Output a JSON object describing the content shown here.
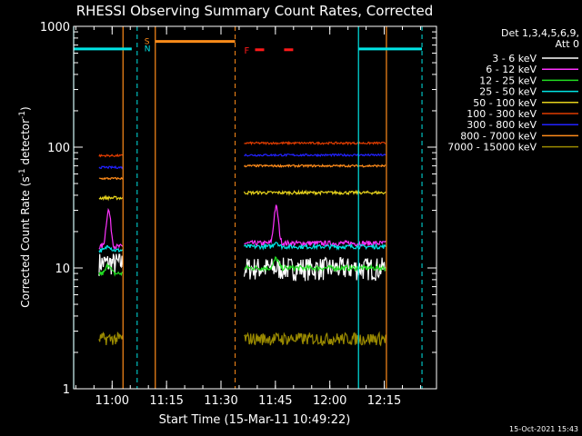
{
  "chart_data": {
    "type": "line",
    "title": "RHESSI Observing Summary Count Rates, Corrected",
    "xlabel": "Start Time (15-Mar-11 10:49:22)",
    "ylabel": "Corrected Count Rate (s⁻¹ detector⁻¹)",
    "ylabel_parts": {
      "main": "Corrected Count Rate (s",
      "exp1": "-1",
      "mid": " detector",
      "exp2": "-1",
      "end": ")"
    },
    "yscale": "log",
    "ylim": [
      1,
      1000
    ],
    "xlim_minutes": [
      0,
      100
    ],
    "x_ticks": [
      {
        "label": "11:00",
        "minute": 10.6
      },
      {
        "label": "11:15",
        "minute": 25.6
      },
      {
        "label": "11:30",
        "minute": 40.6
      },
      {
        "label": "11:45",
        "minute": 55.6
      },
      {
        "label": "12:00",
        "minute": 70.6
      },
      {
        "label": "12:15",
        "minute": 85.6
      }
    ],
    "y_ticks": [
      {
        "label": "1",
        "value": 1
      },
      {
        "label": "10",
        "value": 10
      },
      {
        "label": "100",
        "value": 100
      },
      {
        "label": "1000",
        "value": 1000
      }
    ],
    "legend_header": [
      "Det 1,3,4,5,6,9,",
      "Att 0"
    ],
    "series": [
      {
        "name": "3 - 6 keV",
        "color": "#ffffff",
        "level1": 11,
        "level2": 10,
        "noise": 0.22,
        "bump": 0
      },
      {
        "name": "6 - 12 keV",
        "color": "#ff33ff",
        "level1": 15,
        "level2": 16,
        "noise": 0.05,
        "bump": 1.0
      },
      {
        "name": "12 - 25 keV",
        "color": "#22dd22",
        "level1": 9,
        "level2": 10,
        "noise": 0.05,
        "bump": 0.2
      },
      {
        "name": "25 - 50 keV",
        "color": "#00e5e5",
        "level1": 14,
        "level2": 15,
        "noise": 0.04,
        "bump": 0.1
      },
      {
        "name": "50 - 100 keV",
        "color": "#e6d21c",
        "level1": 38,
        "level2": 42,
        "noise": 0.03,
        "bump": 0
      },
      {
        "name": "100 - 300 keV",
        "color": "#e03c00",
        "level1": 85,
        "level2": 108,
        "noise": 0.02,
        "bump": 0
      },
      {
        "name": "300 - 800 keV",
        "color": "#2222ff",
        "level1": 68,
        "level2": 86,
        "noise": 0.02,
        "bump": 0
      },
      {
        "name": "800 - 7000 keV",
        "color": "#ff8c1a",
        "level1": 55,
        "level2": 70,
        "noise": 0.02,
        "bump": 0
      },
      {
        "name": "7000 - 15000 keV",
        "color": "#9a8a00",
        "level1": 2.6,
        "level2": 2.6,
        "noise": 0.12,
        "bump": 0
      }
    ],
    "data_segments_minutes": [
      [
        7.0,
        13.5
      ],
      [
        47.0,
        86.0
      ]
    ],
    "orbit_flag": {
      "label": "S",
      "label2": "N",
      "value": 750
    },
    "flare_flag": {
      "label": "F",
      "value": 640
    },
    "saa_flag_value": 650
  },
  "footer": {
    "timestamp": "15-Oct-2021 15:43"
  }
}
